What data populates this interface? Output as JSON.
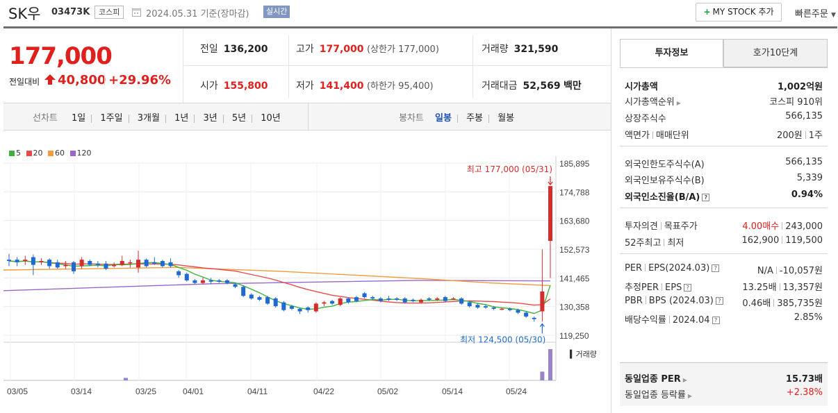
{
  "header": {
    "name": "SK우",
    "code": "03473K",
    "market": "코스피",
    "date_text": "2024.05.31 기준(장마감)",
    "realtime_label": "실시간",
    "mystock_button": "MY STOCK 추가",
    "quick_order": "빠른주문"
  },
  "price": {
    "current": "177,000",
    "change_label": "전일대비",
    "change_amount": "40,800",
    "change_percent": "+29.96%",
    "prev_label": "전일",
    "prev_value": "136,200",
    "high_label": "고가",
    "high_value": "177,000",
    "upper_limit": "(상한가 177,000)",
    "volume_label": "거래량",
    "volume_value": "321,590",
    "open_label": "시가",
    "open_value": "155,800",
    "low_label": "저가",
    "low_value": "141,400",
    "lower_limit": "(하한가 95,400)",
    "amount_label": "거래대금",
    "amount_value": "52,569",
    "amount_unit": "백만"
  },
  "chart_tabs": {
    "line_label": "선차트",
    "line_periods": [
      "1일",
      "1주일",
      "3개월",
      "1년",
      "3년",
      "5년",
      "10년"
    ],
    "candle_label": "봉차트",
    "candle_periods": [
      "일봉",
      "주봉",
      "월봉"
    ],
    "active_candle": "일봉"
  },
  "chart_data": {
    "type": "candlestick",
    "legend": [
      {
        "name": "5",
        "color": "#3cb43c"
      },
      {
        "name": "20",
        "color": "#e84a4a"
      },
      {
        "name": "60",
        "color": "#f39c3c"
      },
      {
        "name": "120",
        "color": "#9966cc"
      }
    ],
    "y_ticks": [
      "185,895",
      "174,788",
      "163,680",
      "152,573",
      "141,465",
      "130,358",
      "119,250"
    ],
    "ylim": [
      119250,
      185895
    ],
    "x_ticks": [
      "03/05",
      "03/14",
      "03/25",
      "04/01",
      "04/11",
      "04/22",
      "05/02",
      "05/14",
      "05/24"
    ],
    "high_annotation": "최고 177,000 (05/31)",
    "low_annotation": "최저 124,500 (05/30)",
    "volume_label": "거래량",
    "candles": [
      {
        "o": 148.5,
        "c": 148.0,
        "h": 150.8,
        "l": 146.0
      },
      {
        "o": 148.5,
        "c": 147.5,
        "h": 149.5,
        "l": 146.0
      },
      {
        "o": 148.0,
        "c": 148.5,
        "h": 150.0,
        "l": 146.5
      },
      {
        "o": 149.5,
        "c": 146.5,
        "h": 150.5,
        "l": 142.5
      },
      {
        "o": 147.5,
        "c": 148.0,
        "h": 149.0,
        "l": 146.5
      },
      {
        "o": 148.5,
        "c": 146.0,
        "h": 149.0,
        "l": 145.0
      },
      {
        "o": 147.5,
        "c": 145.5,
        "h": 148.5,
        "l": 145.0
      },
      {
        "o": 146.0,
        "c": 146.5,
        "h": 148.0,
        "l": 145.0
      },
      {
        "o": 147.5,
        "c": 144.0,
        "h": 148.0,
        "l": 143.0
      },
      {
        "o": 146.0,
        "c": 148.5,
        "h": 149.5,
        "l": 145.0
      },
      {
        "o": 148.0,
        "c": 146.5,
        "h": 148.5,
        "l": 146.0
      },
      {
        "o": 147.0,
        "c": 146.5,
        "h": 148.0,
        "l": 145.5
      },
      {
        "o": 147.0,
        "c": 145.0,
        "h": 148.0,
        "l": 144.5
      },
      {
        "o": 146.0,
        "c": 146.5,
        "h": 147.5,
        "l": 145.5
      },
      {
        "o": 146.5,
        "c": 148.0,
        "h": 150.0,
        "l": 146.0
      },
      {
        "o": 147.5,
        "c": 147.5,
        "h": 148.5,
        "l": 145.5
      },
      {
        "o": 145.5,
        "c": 148.5,
        "h": 152.0,
        "l": 143.5
      },
      {
        "o": 148.5,
        "c": 146.0,
        "h": 149.0,
        "l": 145.5
      },
      {
        "o": 147.5,
        "c": 147.0,
        "h": 149.5,
        "l": 146.5
      },
      {
        "o": 148.0,
        "c": 146.0,
        "h": 148.5,
        "l": 145.5
      },
      {
        "o": 147.5,
        "c": 146.0,
        "h": 149.0,
        "l": 145.5
      },
      {
        "o": 144.0,
        "c": 142.5,
        "h": 144.5,
        "l": 141.5
      },
      {
        "o": 143.0,
        "c": 140.5,
        "h": 143.5,
        "l": 140.0
      },
      {
        "o": 140.5,
        "c": 139.5,
        "h": 141.0,
        "l": 139.0
      },
      {
        "o": 139.5,
        "c": 140.5,
        "h": 141.5,
        "l": 139.0
      },
      {
        "o": 140.5,
        "c": 140.0,
        "h": 141.5,
        "l": 139.0
      },
      {
        "o": 140.5,
        "c": 140.0,
        "h": 141.0,
        "l": 139.5
      },
      {
        "o": 140.5,
        "c": 139.5,
        "h": 141.0,
        "l": 139.0
      },
      {
        "o": 139.0,
        "c": 138.0,
        "h": 139.5,
        "l": 137.5
      },
      {
        "o": 138.0,
        "c": 134.5,
        "h": 138.5,
        "l": 134.0
      },
      {
        "o": 135.0,
        "c": 133.5,
        "h": 135.5,
        "l": 133.0
      },
      {
        "o": 134.0,
        "c": 133.0,
        "h": 134.5,
        "l": 132.5
      },
      {
        "o": 134.0,
        "c": 131.5,
        "h": 134.5,
        "l": 131.0
      },
      {
        "o": 133.5,
        "c": 130.5,
        "h": 134.0,
        "l": 130.0
      },
      {
        "o": 132.0,
        "c": 129.0,
        "h": 132.5,
        "l": 128.5
      },
      {
        "o": 130.5,
        "c": 129.5,
        "h": 131.0,
        "l": 129.0
      },
      {
        "o": 129.5,
        "c": 128.5,
        "h": 130.0,
        "l": 127.5
      },
      {
        "o": 130.0,
        "c": 129.0,
        "h": 130.5,
        "l": 128.0
      },
      {
        "o": 128.5,
        "c": 131.5,
        "h": 132.0,
        "l": 128.0
      },
      {
        "o": 131.5,
        "c": 132.0,
        "h": 132.5,
        "l": 130.5
      },
      {
        "o": 132.5,
        "c": 131.5,
        "h": 133.0,
        "l": 131.0
      },
      {
        "o": 131.0,
        "c": 133.5,
        "h": 134.0,
        "l": 130.5
      },
      {
        "o": 133.5,
        "c": 132.0,
        "h": 134.0,
        "l": 131.5
      },
      {
        "o": 134.0,
        "c": 132.5,
        "h": 134.5,
        "l": 132.0
      },
      {
        "o": 135.5,
        "c": 134.0,
        "h": 136.0,
        "l": 133.5
      },
      {
        "o": 134.0,
        "c": 133.5,
        "h": 134.5,
        "l": 133.0
      },
      {
        "o": 133.5,
        "c": 132.5,
        "h": 134.0,
        "l": 132.0
      },
      {
        "o": 133.5,
        "c": 133.0,
        "h": 134.5,
        "l": 132.5
      },
      {
        "o": 133.5,
        "c": 133.0,
        "h": 134.0,
        "l": 132.5
      },
      {
        "o": 133.5,
        "c": 132.0,
        "h": 134.0,
        "l": 131.5
      },
      {
        "o": 133.0,
        "c": 132.5,
        "h": 133.5,
        "l": 132.0
      },
      {
        "o": 132.0,
        "c": 133.0,
        "h": 133.5,
        "l": 131.5
      },
      {
        "o": 133.5,
        "c": 133.0,
        "h": 134.0,
        "l": 132.5
      },
      {
        "o": 133.0,
        "c": 133.5,
        "h": 134.0,
        "l": 132.5
      },
      {
        "o": 134.0,
        "c": 132.5,
        "h": 134.5,
        "l": 132.0
      },
      {
        "o": 133.5,
        "c": 133.5,
        "h": 134.0,
        "l": 133.0
      },
      {
        "o": 133.5,
        "c": 131.5,
        "h": 134.0,
        "l": 131.0
      },
      {
        "o": 132.0,
        "c": 130.5,
        "h": 132.5,
        "l": 130.0
      },
      {
        "o": 131.0,
        "c": 130.0,
        "h": 131.5,
        "l": 129.5
      },
      {
        "o": 130.5,
        "c": 130.0,
        "h": 131.0,
        "l": 129.5
      },
      {
        "o": 130.0,
        "c": 129.5,
        "h": 130.5,
        "l": 129.0
      },
      {
        "o": 129.5,
        "c": 129.5,
        "h": 130.0,
        "l": 129.0
      },
      {
        "o": 129.5,
        "c": 129.0,
        "h": 130.0,
        "l": 128.5
      },
      {
        "o": 129.0,
        "c": 128.0,
        "h": 129.5,
        "l": 127.5
      },
      {
        "o": 128.0,
        "c": 126.5,
        "h": 128.5,
        "l": 126.0
      },
      {
        "o": 126.0,
        "c": 125.5,
        "h": 126.5,
        "l": 124.5
      },
      {
        "o": 128.5,
        "c": 136.2,
        "h": 152.5,
        "l": 124.5
      },
      {
        "o": 155.8,
        "c": 177.0,
        "h": 177.0,
        "l": 141.4
      }
    ],
    "volume_relative": [
      0.08,
      0.28,
      1.0
    ]
  },
  "panel": {
    "tabs": [
      "투자정보",
      "호가10단계"
    ],
    "rows": {
      "market_cap_label": "시가총액",
      "market_cap_value": "1,002억원",
      "rank_label": "시가총액순위",
      "rank_value": "코스피 910위",
      "shares_label": "상장주식수",
      "shares_value": "566,135",
      "face_label1": "액면가",
      "face_label2": "매매단위",
      "face_value1": "200원",
      "face_value2": "1주",
      "foreign_limit_label": "외국인한도주식수(A)",
      "foreign_limit_value": "566,135",
      "foreign_hold_label": "외국인보유주식수(B)",
      "foreign_hold_value": "5,339",
      "foreign_ratio_label": "외국인소진율(B/A)",
      "foreign_ratio_value": "0.94%",
      "opinion_label1": "투자의견",
      "opinion_label2": "목표주가",
      "opinion_value": "4.00매수",
      "target_value": "243,000",
      "w52_label1": "52주최고",
      "w52_label2": "최저",
      "w52_high": "162,900",
      "w52_low": "119,500",
      "per_label1": "PER",
      "per_label2": "EPS(2024.03)",
      "per_value": "N/A",
      "eps_value": "-10,057원",
      "eper_label1": "추정PER",
      "eper_label2": "EPS",
      "eper_value": "13.25배",
      "eeps_value": "13,357원",
      "pbr_label1": "PBR",
      "pbr_label2": "BPS (2024.03)",
      "pbr_value": "0.46배",
      "bps_value": "385,735원",
      "div_label1": "배당수익률",
      "div_label2": "2024.04",
      "div_value": "2.85%",
      "sector_per_label": "동일업종 PER",
      "sector_per_value": "15.73배",
      "sector_rate_label": "동일업종 등락률",
      "sector_rate_value": "+2.38%"
    }
  }
}
